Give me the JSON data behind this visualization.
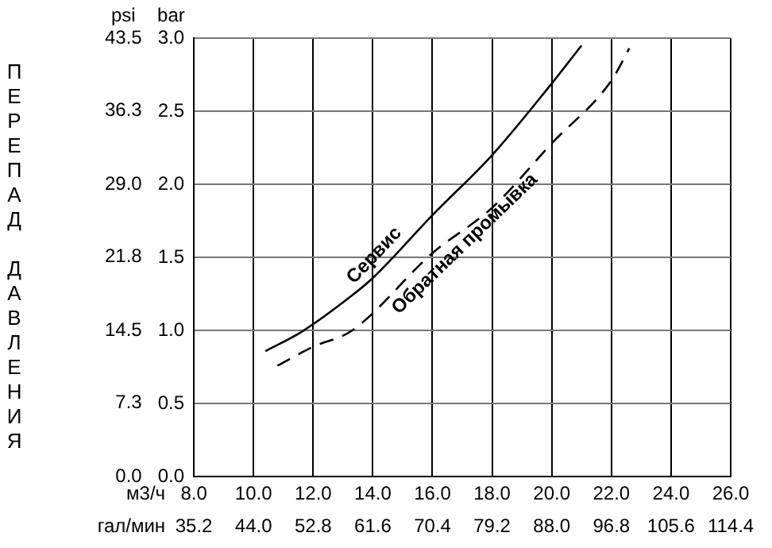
{
  "chart_data": {
    "type": "line",
    "xlabel": "м3/ч",
    "x2label": "гал/мин",
    "ylabel": "bar",
    "y2label": "psi",
    "annotations": [
      "ПЕРЕПАД ДАВЛЕНИЯ"
    ],
    "xlim": [
      8,
      26
    ],
    "xticks": [
      {
        "value": 8,
        "label": "8.0"
      },
      {
        "value": 10,
        "label": "10.0"
      },
      {
        "value": 12,
        "label": "12.0"
      },
      {
        "value": 14,
        "label": "14.0"
      },
      {
        "value": 16,
        "label": "16.0"
      },
      {
        "value": 18,
        "label": "18.0"
      },
      {
        "value": 20,
        "label": "20.0"
      },
      {
        "value": 22,
        "label": "22.0"
      },
      {
        "value": 24,
        "label": "24.0"
      },
      {
        "value": 26,
        "label": "26.0"
      }
    ],
    "x2lim": [
      35.2,
      114.4
    ],
    "x2ticks": [
      35.2,
      {
        "value": 44,
        "label": "44.0"
      },
      52.8,
      61.6,
      70.4,
      79.2,
      {
        "value": 88,
        "label": "88.0"
      },
      96.8,
      105.6,
      114.4
    ],
    "ylim": [
      0,
      3
    ],
    "yticks": [
      {
        "value": 0,
        "label": "0.0"
      },
      0.5,
      {
        "value": 1,
        "label": "1.0"
      },
      1.5,
      {
        "value": 2,
        "label": "2.0"
      },
      2.5,
      {
        "value": 3,
        "label": "3.0"
      }
    ],
    "y2lim": [
      0,
      43.5
    ],
    "y2ticks": [
      {
        "value": 0,
        "label": "0.0"
      },
      7.3,
      14.5,
      21.8,
      {
        "value": 29,
        "label": "29.0"
      },
      36.3,
      43.5
    ],
    "grid": true,
    "legend": false,
    "marker": "none",
    "series": [
      {
        "name": "Сервис",
        "color": "#000000",
        "line_style": "solid",
        "x": [
          10.4,
          11.6,
          13.3,
          14,
          16,
          18,
          20,
          21
        ],
        "values": [
          0.86,
          0.99,
          1.24,
          1.36,
          1.79,
          2.2,
          2.69,
          2.95
        ]
      },
      {
        "name": "Обратная промывка",
        "color": "#000000",
        "line_style": "dashed",
        "x": [
          10.8,
          12,
          13.3,
          16,
          18,
          20,
          22,
          22.6
        ],
        "values": [
          0.76,
          0.89,
          1,
          1.53,
          1.84,
          2.28,
          2.71,
          2.93
        ]
      }
    ]
  }
}
